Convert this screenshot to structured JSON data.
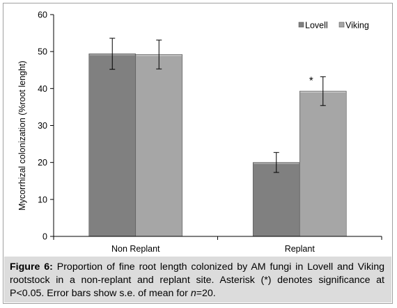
{
  "chart_data": {
    "type": "bar",
    "title": "",
    "categories": [
      "Non Replant",
      "Replant"
    ],
    "series": [
      {
        "name": "Lovell",
        "values": [
          49.4,
          20.0
        ],
        "errors": [
          4.2,
          2.7
        ],
        "color": "#808080"
      },
      {
        "name": "Viking",
        "values": [
          49.2,
          39.3
        ],
        "errors": [
          3.9,
          3.9
        ],
        "color": "#a6a6a6"
      }
    ],
    "xlabel": "",
    "ylabel": "Mycorrhizal colonization (%root lenght)",
    "ylim": [
      0,
      60
    ],
    "yticks": [
      0,
      10,
      20,
      30,
      40,
      50,
      60
    ],
    "grid": false,
    "legend": "top-right",
    "annotations": [
      {
        "text": "*",
        "category": "Replant",
        "series": "Viking"
      }
    ]
  },
  "caption": {
    "label": "Figure 6:",
    "text_before_italic": " Proportion of fine root length colonized by AM fungi in Lovell and Viking rootstock in a non-replant and replant site. Asterisk (*) denotes significance at P<0.05. Error bars show s.e. of mean for ",
    "italic": "n",
    "text_after_italic": "=20."
  }
}
